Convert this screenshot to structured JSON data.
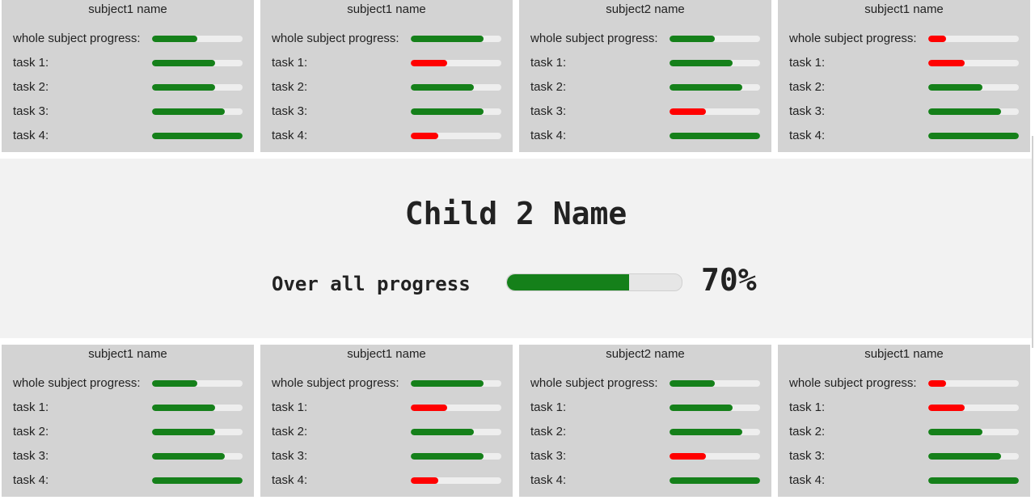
{
  "child": {
    "name": "Child 2 Name",
    "overall_label": "Over all progress",
    "overall_percent_text": "70%",
    "overall_progress": 0.7
  },
  "colors": {
    "good": "#15801a",
    "bad": "#ff0000",
    "track": "#eeeeee",
    "card_bg": "#d3d3d3",
    "middle_bg": "#f2f2f2"
  },
  "top_row": [
    {
      "title": "subject1 name",
      "rows": [
        {
          "label": "whole subject progress:",
          "value": 0.5,
          "status": "good"
        },
        {
          "label": "task 1:",
          "value": 0.7,
          "status": "good"
        },
        {
          "label": "task 2:",
          "value": 0.7,
          "status": "good"
        },
        {
          "label": "task 3:",
          "value": 0.8,
          "status": "good"
        },
        {
          "label": "task 4:",
          "value": 1.0,
          "status": "good"
        }
      ]
    },
    {
      "title": "subject1 name",
      "rows": [
        {
          "label": "whole subject progress:",
          "value": 0.8,
          "status": "good"
        },
        {
          "label": "task 1:",
          "value": 0.4,
          "status": "bad"
        },
        {
          "label": "task 2:",
          "value": 0.7,
          "status": "good"
        },
        {
          "label": "task 3:",
          "value": 0.8,
          "status": "good"
        },
        {
          "label": "task 4:",
          "value": 0.3,
          "status": "bad"
        }
      ]
    },
    {
      "title": "subject2 name",
      "rows": [
        {
          "label": "whole subject progress:",
          "value": 0.5,
          "status": "good"
        },
        {
          "label": "task 1:",
          "value": 0.7,
          "status": "good"
        },
        {
          "label": "task 2:",
          "value": 0.8,
          "status": "good"
        },
        {
          "label": "task 3:",
          "value": 0.4,
          "status": "bad"
        },
        {
          "label": "task 4:",
          "value": 1.0,
          "status": "good"
        }
      ]
    },
    {
      "title": "subject1 name",
      "rows": [
        {
          "label": "whole subject progress:",
          "value": 0.2,
          "status": "bad"
        },
        {
          "label": "task 1:",
          "value": 0.4,
          "status": "bad"
        },
        {
          "label": "task 2:",
          "value": 0.6,
          "status": "good"
        },
        {
          "label": "task 3:",
          "value": 0.8,
          "status": "good"
        },
        {
          "label": "task 4:",
          "value": 1.0,
          "status": "good"
        }
      ]
    }
  ],
  "bottom_row": [
    {
      "title": "subject1 name",
      "rows": [
        {
          "label": "whole subject progress:",
          "value": 0.5,
          "status": "good"
        },
        {
          "label": "task 1:",
          "value": 0.7,
          "status": "good"
        },
        {
          "label": "task 2:",
          "value": 0.7,
          "status": "good"
        },
        {
          "label": "task 3:",
          "value": 0.8,
          "status": "good"
        },
        {
          "label": "task 4:",
          "value": 1.0,
          "status": "good"
        }
      ]
    },
    {
      "title": "subject1 name",
      "rows": [
        {
          "label": "whole subject progress:",
          "value": 0.8,
          "status": "good"
        },
        {
          "label": "task 1:",
          "value": 0.4,
          "status": "bad"
        },
        {
          "label": "task 2:",
          "value": 0.7,
          "status": "good"
        },
        {
          "label": "task 3:",
          "value": 0.8,
          "status": "good"
        },
        {
          "label": "task 4:",
          "value": 0.3,
          "status": "bad"
        }
      ]
    },
    {
      "title": "subject2 name",
      "rows": [
        {
          "label": "whole subject progress:",
          "value": 0.5,
          "status": "good"
        },
        {
          "label": "task 1:",
          "value": 0.7,
          "status": "good"
        },
        {
          "label": "task 2:",
          "value": 0.8,
          "status": "good"
        },
        {
          "label": "task 3:",
          "value": 0.4,
          "status": "bad"
        },
        {
          "label": "task 4:",
          "value": 1.0,
          "status": "good"
        }
      ]
    },
    {
      "title": "subject1 name",
      "rows": [
        {
          "label": "whole subject progress:",
          "value": 0.2,
          "status": "bad"
        },
        {
          "label": "task 1:",
          "value": 0.4,
          "status": "bad"
        },
        {
          "label": "task 2:",
          "value": 0.6,
          "status": "good"
        },
        {
          "label": "task 3:",
          "value": 0.8,
          "status": "good"
        },
        {
          "label": "task 4:",
          "value": 1.0,
          "status": "good"
        }
      ]
    }
  ]
}
